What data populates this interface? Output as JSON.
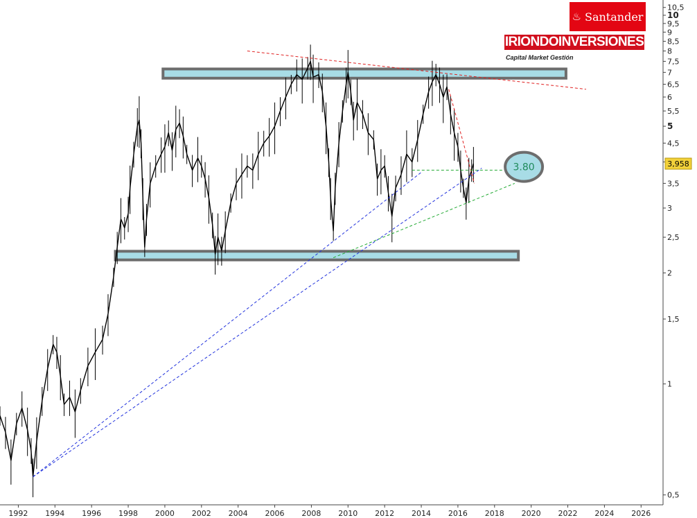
{
  "brand": {
    "bank_name": "Santander",
    "firm_name": "IRIONDOINVERSIONES",
    "firm_tagline": "Capital Market Gestión",
    "bank_color": "#e30613"
  },
  "chart_data": {
    "type": "line",
    "title": "",
    "xlabel": "",
    "ylabel": "",
    "y_scale": "log",
    "ylim": [
      0.47,
      11.0
    ],
    "xlim": [
      1991.0,
      2027.2
    ],
    "x_ticks": [
      "1992",
      "1994",
      "1996",
      "1998",
      "2000",
      "2002",
      "2004",
      "2006",
      "2008",
      "2010",
      "2012",
      "2014",
      "2016",
      "2018",
      "2020",
      "2022",
      "2024",
      "2026"
    ],
    "y_ticks": [
      {
        "value": 0.5,
        "label": "0,5"
      },
      {
        "value": 1,
        "label": "1"
      },
      {
        "value": 1.5,
        "label": "1,5"
      },
      {
        "value": 2,
        "label": "2"
      },
      {
        "value": 2.5,
        "label": "2,5"
      },
      {
        "value": 3,
        "label": "3"
      },
      {
        "value": 3.5,
        "label": "3,5"
      },
      {
        "value": 4,
        "label": ""
      },
      {
        "value": 4.5,
        "label": "4,5"
      },
      {
        "value": 5,
        "label": "5",
        "bold": true
      },
      {
        "value": 5.5,
        "label": "5,5"
      },
      {
        "value": 6,
        "label": "6"
      },
      {
        "value": 6.5,
        "label": "6,5"
      },
      {
        "value": 7,
        "label": "7"
      },
      {
        "value": 7.5,
        "label": "7,5"
      },
      {
        "value": 8,
        "label": "8"
      },
      {
        "value": 8.5,
        "label": "8,5"
      },
      {
        "value": 9,
        "label": "9"
      },
      {
        "value": 9.5,
        "label": "9,5"
      },
      {
        "value": 10,
        "label": "10",
        "bold": true
      },
      {
        "value": 10.5,
        "label": "10,5"
      }
    ],
    "last_price": {
      "value": 3.958,
      "label": "3,958",
      "color": "#f2d13a"
    },
    "series": [
      {
        "color": "#000000",
        "points": [
          [
            1991.0,
            0.82
          ],
          [
            1991.3,
            0.74
          ],
          [
            1991.6,
            0.62
          ],
          [
            1991.9,
            0.78
          ],
          [
            1992.2,
            0.86
          ],
          [
            1992.5,
            0.75
          ],
          [
            1992.7,
            0.66
          ],
          [
            1992.8,
            0.56
          ],
          [
            1993.0,
            0.7
          ],
          [
            1993.3,
            0.9
          ],
          [
            1993.6,
            1.1
          ],
          [
            1993.9,
            1.28
          ],
          [
            1994.1,
            1.22
          ],
          [
            1994.3,
            1.05
          ],
          [
            1994.5,
            0.88
          ],
          [
            1994.8,
            0.92
          ],
          [
            1995.1,
            0.84
          ],
          [
            1995.4,
            0.96
          ],
          [
            1995.8,
            1.12
          ],
          [
            1996.2,
            1.22
          ],
          [
            1996.6,
            1.32
          ],
          [
            1996.9,
            1.55
          ],
          [
            1997.2,
            1.95
          ],
          [
            1997.4,
            2.35
          ],
          [
            1997.6,
            2.8
          ],
          [
            1997.8,
            2.65
          ],
          [
            1998.0,
            2.9
          ],
          [
            1998.1,
            3.4
          ],
          [
            1998.3,
            4.2
          ],
          [
            1998.5,
            5.0
          ],
          [
            1998.6,
            5.2
          ],
          [
            1998.7,
            4.5
          ],
          [
            1998.8,
            3.2
          ],
          [
            1998.9,
            2.35
          ],
          [
            1999.0,
            2.8
          ],
          [
            1999.2,
            3.5
          ],
          [
            1999.5,
            3.9
          ],
          [
            1999.8,
            4.2
          ],
          [
            2000.0,
            4.4
          ],
          [
            2000.2,
            4.8
          ],
          [
            2000.4,
            4.3
          ],
          [
            2000.6,
            4.9
          ],
          [
            2000.8,
            5.1
          ],
          [
            2001.0,
            4.7
          ],
          [
            2001.2,
            4.2
          ],
          [
            2001.5,
            3.8
          ],
          [
            2001.8,
            4.1
          ],
          [
            2002.0,
            3.9
          ],
          [
            2002.2,
            3.6
          ],
          [
            2002.4,
            3.2
          ],
          [
            2002.6,
            2.7
          ],
          [
            2002.75,
            2.25
          ],
          [
            2002.9,
            2.5
          ],
          [
            2003.1,
            2.3
          ],
          [
            2003.3,
            2.6
          ],
          [
            2003.6,
            3.1
          ],
          [
            2003.9,
            3.5
          ],
          [
            2004.2,
            3.7
          ],
          [
            2004.5,
            3.9
          ],
          [
            2004.8,
            3.8
          ],
          [
            2005.1,
            4.2
          ],
          [
            2005.4,
            4.5
          ],
          [
            2005.7,
            4.7
          ],
          [
            2006.0,
            5.0
          ],
          [
            2006.3,
            5.5
          ],
          [
            2006.6,
            6.0
          ],
          [
            2006.9,
            6.5
          ],
          [
            2007.2,
            6.9
          ],
          [
            2007.5,
            6.7
          ],
          [
            2007.8,
            7.2
          ],
          [
            2007.95,
            7.5
          ],
          [
            2008.1,
            6.8
          ],
          [
            2008.4,
            6.9
          ],
          [
            2008.6,
            6.2
          ],
          [
            2008.8,
            5.0
          ],
          [
            2008.95,
            4.0
          ],
          [
            2009.05,
            3.2
          ],
          [
            2009.2,
            2.6
          ],
          [
            2009.3,
            3.4
          ],
          [
            2009.5,
            4.5
          ],
          [
            2009.7,
            5.5
          ],
          [
            2009.9,
            6.5
          ],
          [
            2010.0,
            7.0
          ],
          [
            2010.15,
            6.2
          ],
          [
            2010.3,
            5.2
          ],
          [
            2010.5,
            5.8
          ],
          [
            2010.8,
            5.4
          ],
          [
            2011.1,
            4.8
          ],
          [
            2011.4,
            4.6
          ],
          [
            2011.6,
            3.6
          ],
          [
            2011.8,
            3.8
          ],
          [
            2012.0,
            3.9
          ],
          [
            2012.2,
            3.3
          ],
          [
            2012.4,
            2.85
          ],
          [
            2012.6,
            3.4
          ],
          [
            2012.9,
            3.7
          ],
          [
            2013.2,
            4.2
          ],
          [
            2013.5,
            4.0
          ],
          [
            2013.8,
            4.6
          ],
          [
            2014.1,
            5.4
          ],
          [
            2014.4,
            6.2
          ],
          [
            2014.6,
            6.6
          ],
          [
            2014.8,
            6.9
          ],
          [
            2015.0,
            6.5
          ],
          [
            2015.2,
            6.0
          ],
          [
            2015.4,
            6.4
          ],
          [
            2015.6,
            5.4
          ],
          [
            2015.8,
            4.8
          ],
          [
            2016.0,
            4.4
          ],
          [
            2016.15,
            3.8
          ],
          [
            2016.3,
            3.4
          ],
          [
            2016.45,
            3.1
          ],
          [
            2016.6,
            3.6
          ],
          [
            2016.75,
            3.8
          ],
          [
            2016.85,
            3.958
          ]
        ]
      }
    ],
    "annotations": [
      {
        "kind": "zone",
        "x_from": 1999.9,
        "x_to": 2021.9,
        "y_low": 6.75,
        "y_high": 7.15
      },
      {
        "kind": "zone",
        "x_from": 1997.3,
        "x_to": 2019.3,
        "y_low": 2.17,
        "y_high": 2.29
      },
      {
        "kind": "dashed_line",
        "color": "#e02020",
        "from": [
          2004.5,
          8.0
        ],
        "to": [
          2023.0,
          6.3
        ]
      },
      {
        "kind": "dashed_line",
        "color": "#e02020",
        "from": [
          2015.5,
          6.3
        ],
        "to": [
          2016.9,
          3.5
        ]
      },
      {
        "kind": "dashed_line",
        "color": "#2233dd",
        "from": [
          1992.8,
          0.56
        ],
        "to": [
          2014.0,
          3.75
        ]
      },
      {
        "kind": "dashed_line",
        "color": "#2233dd",
        "from": [
          1992.8,
          0.56
        ],
        "to": [
          2017.3,
          3.85
        ]
      },
      {
        "kind": "dashed_line",
        "color": "#22aa33",
        "from": [
          2009.2,
          2.2
        ],
        "to": [
          2019.1,
          3.5
        ]
      },
      {
        "kind": "dashed_line",
        "color": "#22aa33",
        "from": [
          2013.5,
          3.8
        ],
        "to": [
          2018.8,
          3.8
        ]
      },
      {
        "kind": "circle_label",
        "text": "3.80",
        "x": 2019.6,
        "y": 3.88,
        "color": "#1f8a5a"
      }
    ]
  }
}
